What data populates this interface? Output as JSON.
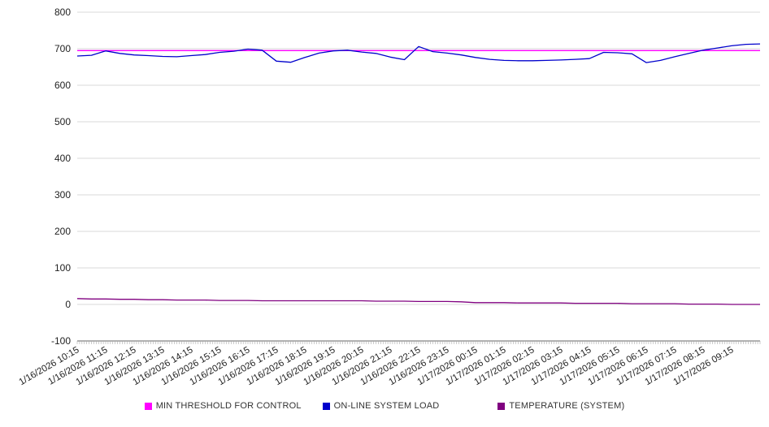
{
  "chart_data": {
    "type": "line",
    "title": "",
    "xlabel": "",
    "ylabel": "",
    "ylim": [
      -100,
      800
    ],
    "y_ticks": [
      800,
      700,
      600,
      500,
      400,
      300,
      200,
      100,
      0,
      -100
    ],
    "grid": true,
    "legend_position": "bottom",
    "x_labels": [
      "1/16/2026 10:15",
      "1/16/2026 11:15",
      "1/16/2026 12:15",
      "1/16/2026 13:15",
      "1/16/2026 14:15",
      "1/16/2026 15:15",
      "1/16/2026 16:15",
      "1/16/2026 17:15",
      "1/16/2026 18:15",
      "1/16/2026 19:15",
      "1/16/2026 20:15",
      "1/16/2026 21:15",
      "1/16/2026 22:15",
      "1/16/2026 23:15",
      "1/17/2026 00:15",
      "1/17/2026 01:15",
      "1/17/2026 02:15",
      "1/17/2026 03:15",
      "1/17/2026 04:15",
      "1/17/2026 05:15",
      "1/17/2026 06:15",
      "1/17/2026 07:15",
      "1/17/2026 08:15",
      "1/17/2026 09:15"
    ],
    "series": [
      {
        "name": "MIN THRESHOLD FOR CONTROL",
        "color": "#ff00ff",
        "values": [
          695,
          695
        ]
      },
      {
        "name": "ON-LINE SYSTEM LOAD",
        "color": "#0000cc",
        "values": [
          680,
          682,
          694,
          687,
          683,
          681,
          679,
          678,
          681,
          684,
          690,
          693,
          699,
          696,
          666,
          663,
          676,
          688,
          694,
          696,
          691,
          687,
          677,
          670,
          706,
          692,
          688,
          683,
          676,
          671,
          668,
          667,
          667,
          668,
          669,
          671,
          673,
          690,
          689,
          686,
          662,
          668,
          678,
          687,
          696,
          702,
          708,
          712,
          713
        ]
      },
      {
        "name": "TEMPERATURE (SYSTEM)",
        "color": "#800080",
        "values": [
          16,
          15,
          15,
          14,
          14,
          13,
          13,
          12,
          12,
          12,
          11,
          11,
          11,
          10,
          10,
          10,
          10,
          10,
          10,
          10,
          10,
          9,
          9,
          9,
          8,
          8,
          8,
          7,
          5,
          5,
          5,
          4,
          4,
          4,
          4,
          3,
          3,
          3,
          3,
          2,
          2,
          2,
          2,
          1,
          1,
          1,
          0,
          0,
          0
        ]
      }
    ]
  }
}
